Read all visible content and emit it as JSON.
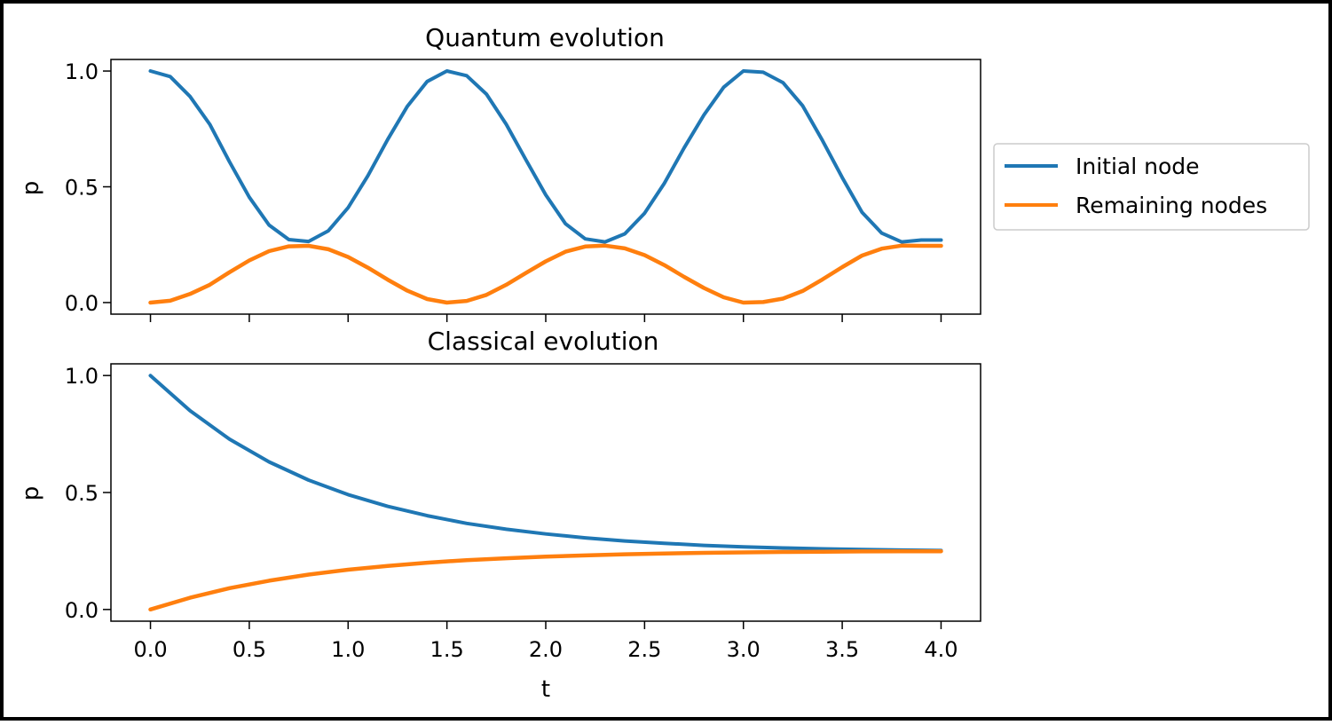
{
  "chart_data": [
    {
      "type": "line",
      "title": "Quantum evolution",
      "xlabel": "",
      "ylabel": "p",
      "xlim": [
        -0.2,
        4.2
      ],
      "ylim": [
        -0.05,
        1.05
      ],
      "xticks": [
        0.0,
        0.5,
        1.0,
        1.5,
        2.0,
        2.5,
        3.0,
        3.5,
        4.0
      ],
      "xtick_labels_visible": false,
      "yticks": [
        0.0,
        0.5,
        1.0
      ],
      "ytick_labels": [
        "0.0",
        "0.5",
        "1.0"
      ],
      "grid": false,
      "legend_position": "outside-right",
      "x": [
        0.0,
        0.1,
        0.2,
        0.3,
        0.4,
        0.5,
        0.6,
        0.7,
        0.8,
        0.9,
        1.0,
        1.1,
        1.2,
        1.3,
        1.4,
        1.5,
        1.6,
        1.7,
        1.8,
        1.9,
        2.0,
        2.1,
        2.2,
        2.3,
        2.4,
        2.5,
        2.6,
        2.7,
        2.8,
        2.9,
        3.0,
        3.1,
        3.2,
        3.3,
        3.4,
        3.5,
        3.6,
        3.7,
        3.8,
        3.9,
        4.0
      ],
      "series": [
        {
          "name": "Initial node",
          "color": "#1f77b4",
          "values": [
            1.0,
            0.976,
            0.89,
            0.77,
            0.608,
            0.455,
            0.335,
            0.272,
            0.264,
            0.31,
            0.41,
            0.547,
            0.704,
            0.848,
            0.955,
            1.0,
            0.98,
            0.9,
            0.77,
            0.616,
            0.465,
            0.34,
            0.275,
            0.262,
            0.297,
            0.386,
            0.515,
            0.668,
            0.81,
            0.93,
            1.0,
            0.995,
            0.95,
            0.85,
            0.7,
            0.54,
            0.39,
            0.3,
            0.262,
            0.27,
            0.27
          ]
        },
        {
          "name": "Remaining nodes",
          "color": "#ff7f0e",
          "values": [
            0.0,
            0.008,
            0.037,
            0.077,
            0.131,
            0.182,
            0.222,
            0.243,
            0.245,
            0.23,
            0.197,
            0.151,
            0.099,
            0.051,
            0.015,
            0.0,
            0.007,
            0.033,
            0.077,
            0.128,
            0.178,
            0.22,
            0.242,
            0.246,
            0.234,
            0.205,
            0.162,
            0.111,
            0.063,
            0.023,
            0.0,
            0.002,
            0.017,
            0.05,
            0.1,
            0.153,
            0.203,
            0.233,
            0.246,
            0.245,
            0.245
          ]
        }
      ]
    },
    {
      "type": "line",
      "title": "Classical evolution",
      "xlabel": "t",
      "ylabel": "p",
      "xlim": [
        -0.2,
        4.2
      ],
      "ylim": [
        -0.05,
        1.05
      ],
      "xticks": [
        0.0,
        0.5,
        1.0,
        1.5,
        2.0,
        2.5,
        3.0,
        3.5,
        4.0
      ],
      "xtick_labels": [
        "0.0",
        "0.5",
        "1.0",
        "1.5",
        "2.0",
        "2.5",
        "3.0",
        "3.5",
        "4.0"
      ],
      "yticks": [
        0.0,
        0.5,
        1.0
      ],
      "ytick_labels": [
        "0.0",
        "0.5",
        "1.0"
      ],
      "grid": false,
      "x": [
        0.0,
        0.2,
        0.4,
        0.6,
        0.8,
        1.0,
        1.2,
        1.4,
        1.6,
        1.8,
        2.0,
        2.2,
        2.4,
        2.6,
        2.8,
        3.0,
        3.2,
        3.4,
        3.6,
        3.8,
        4.0
      ],
      "series": [
        {
          "name": "Initial node",
          "color": "#1f77b4",
          "values": [
            1.0,
            0.85,
            0.728,
            0.631,
            0.553,
            0.491,
            0.441,
            0.401,
            0.368,
            0.343,
            0.323,
            0.306,
            0.293,
            0.283,
            0.274,
            0.268,
            0.263,
            0.259,
            0.256,
            0.254,
            0.252
          ]
        },
        {
          "name": "Remaining nodes",
          "color": "#ff7f0e",
          "values": [
            0.0,
            0.05,
            0.091,
            0.123,
            0.149,
            0.17,
            0.186,
            0.2,
            0.211,
            0.219,
            0.226,
            0.231,
            0.236,
            0.239,
            0.242,
            0.244,
            0.246,
            0.247,
            0.248,
            0.249,
            0.249
          ]
        }
      ]
    }
  ]
}
